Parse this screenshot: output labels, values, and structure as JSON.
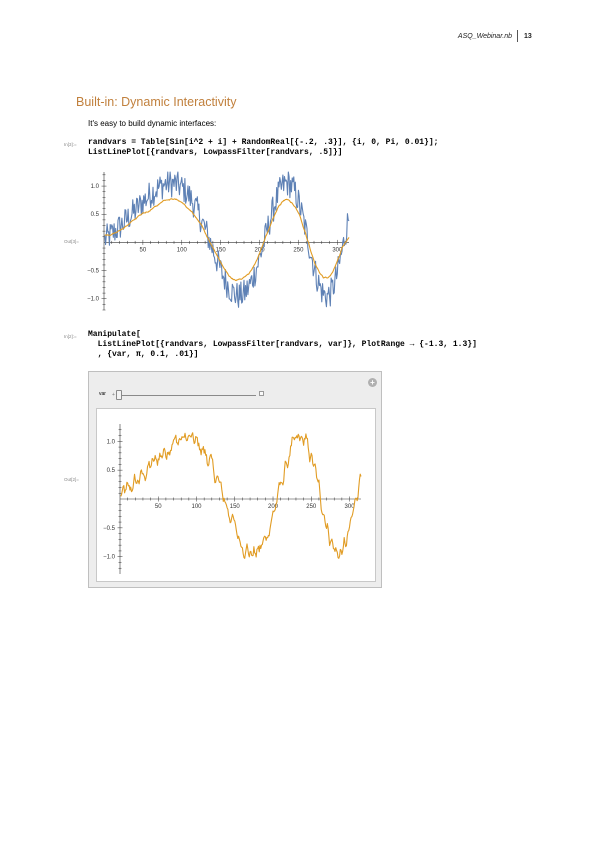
{
  "header": {
    "filename": "ASQ_Webinar.nb",
    "page": "13"
  },
  "section_title": "Built-in: Dynamic Interactivity",
  "intro": "It's easy to build dynamic interfaces:",
  "cells": {
    "in1": {
      "label": "In[3]:=",
      "code": "randvars = Table[Sin[i^2 + i] + RandomReal[{-.2, .3}], {i, 0, Pi, 0.01}];\nListLinePlot[{randvars, LowpassFilter[randvars, .5]}]"
    },
    "out1": {
      "label": "Out[3]="
    },
    "in2": {
      "label": "In[2]:=",
      "code": "Manipulate[\n  ListLinePlot[{randvars, LowpassFilter[randvars, var]}, PlotRange → {-1.3, 1.3}]\n  , {var, π, 0.1, .01}]"
    },
    "out2": {
      "label": "Out[2]="
    }
  },
  "manipulate": {
    "var_label": "var",
    "slider": {
      "min": 0.1,
      "max": 3.14159,
      "value": 0.1
    }
  },
  "colors": {
    "blue": "#5e81b5",
    "orange": "#e19c24",
    "title": "#c1803d"
  },
  "chart_data": [
    {
      "type": "line",
      "title": "",
      "xlim": [
        0,
        315
      ],
      "ylim": [
        -1.2,
        1.25
      ],
      "x_ticks": [
        50,
        100,
        150,
        200,
        250,
        300
      ],
      "y_ticks": [
        -1.0,
        -0.5,
        0.5,
        1.0
      ],
      "x_tick_labels": [
        "50",
        "100",
        "150",
        "200",
        "250",
        "300"
      ],
      "y_tick_labels": [
        "−1.0",
        "−0.5",
        "0.5",
        "1.0"
      ],
      "series": [
        {
          "color": "#5e81b5",
          "noise": 0.25,
          "values_formula": "Sin[i^2 + i] + RandomReal[{-.2, .3}], i = 0 … Pi step 0.01"
        },
        {
          "color": "#e19c24",
          "smoothing": 0.5,
          "values_formula": "LowpassFilter[randvars, .5]"
        }
      ]
    },
    {
      "type": "line",
      "title": "",
      "xlim": [
        0,
        315
      ],
      "ylim": [
        -1.3,
        1.3
      ],
      "x_ticks": [
        50,
        100,
        150,
        200,
        250,
        300
      ],
      "y_ticks": [
        -1.0,
        -0.5,
        0.5,
        1.0
      ],
      "x_tick_labels": [
        "50",
        "100",
        "150",
        "200",
        "250",
        "300"
      ],
      "y_tick_labels": [
        "−1.0",
        "−0.5",
        "0.5",
        "1.0"
      ],
      "series": [
        {
          "color": "#e19c24",
          "noise": 0.25,
          "values_formula": "LowpassFilter[randvars, 0.1]"
        }
      ]
    }
  ]
}
